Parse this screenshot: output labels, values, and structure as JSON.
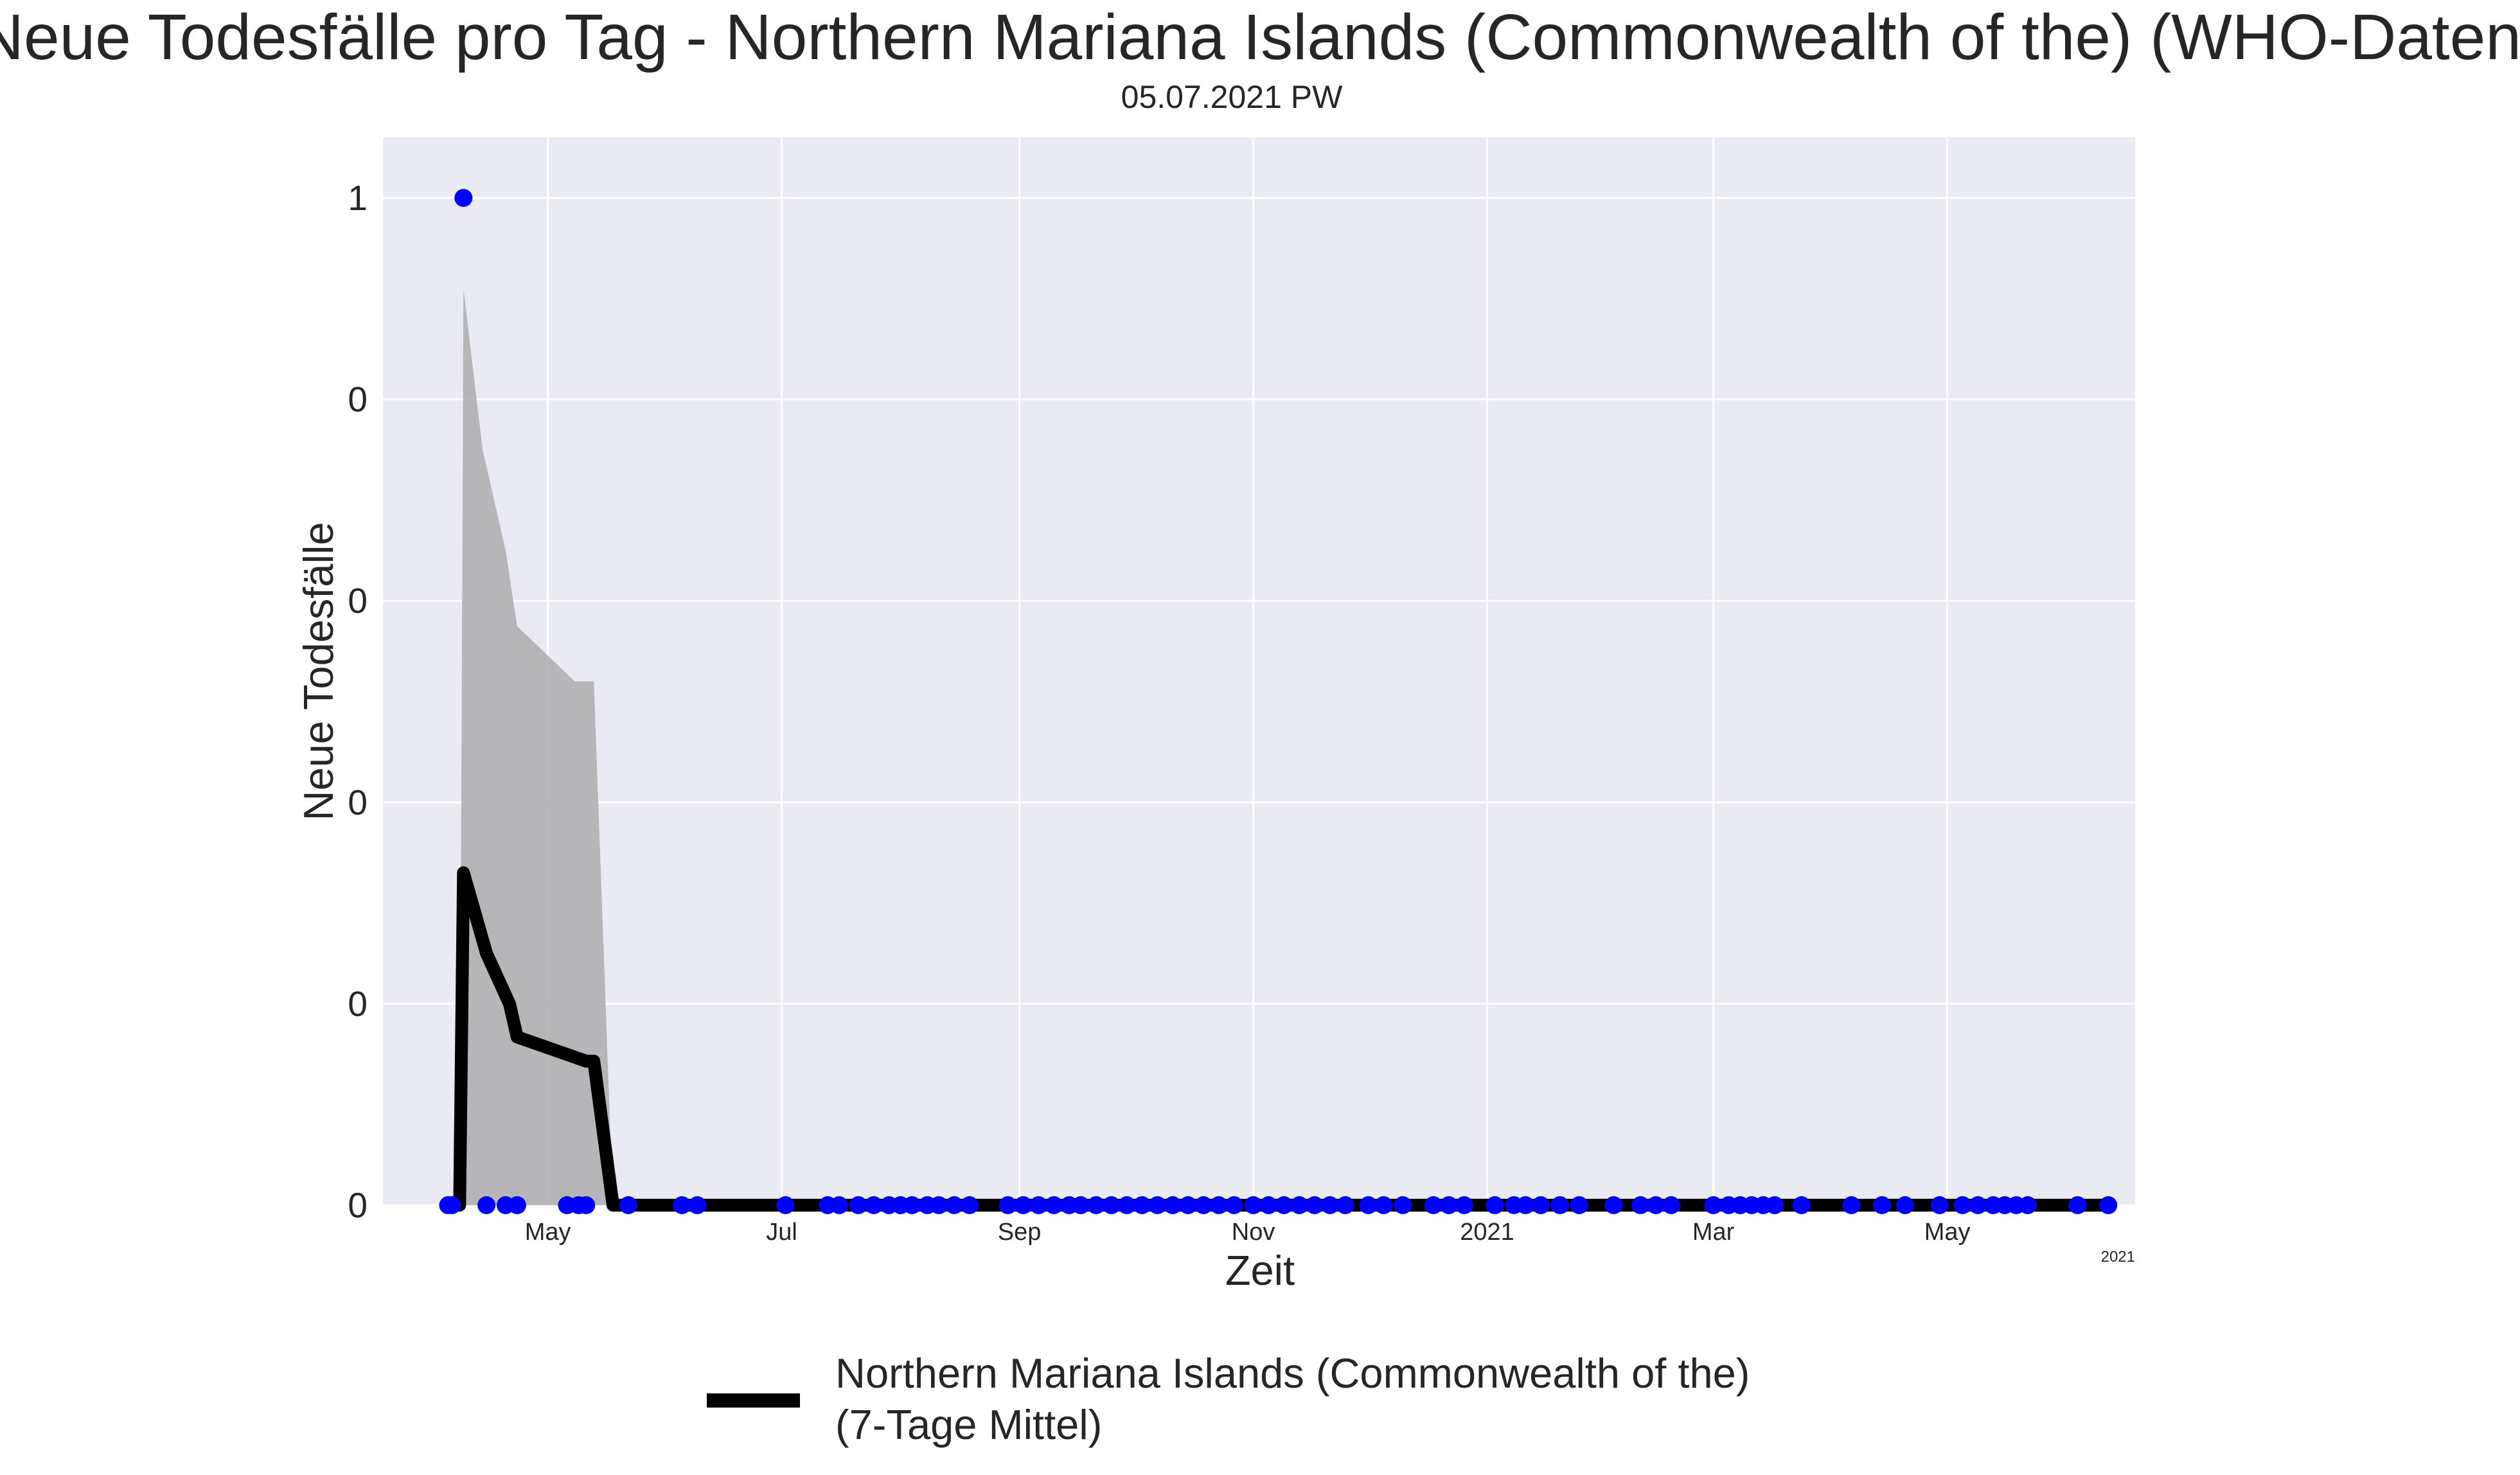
{
  "chart_data": {
    "type": "line",
    "title": "Neue Todesfälle pro Tag - Northern Mariana Islands (Commonwealth of the) (WHO-Daten)",
    "subtitle": "05.07.2021 PW",
    "xlabel": "Zeit",
    "ylabel": "Neue Todesfälle",
    "x_offset_label": "2021",
    "xlim": [
      "2020-03-19",
      "2021-06-19"
    ],
    "ylim": [
      0,
      1.06
    ],
    "grid": true,
    "x_ticks": [
      {
        "date": "2020-05-01",
        "label": "May"
      },
      {
        "date": "2020-07-01",
        "label": "Jul"
      },
      {
        "date": "2020-09-01",
        "label": "Sep"
      },
      {
        "date": "2020-11-01",
        "label": "Nov"
      },
      {
        "date": "2021-01-01",
        "label": "2021"
      },
      {
        "date": "2021-03-01",
        "label": "Mar"
      },
      {
        "date": "2021-05-01",
        "label": "May"
      }
    ],
    "y_ticks": [
      {
        "value": 0,
        "label": "0"
      },
      {
        "value": 0.2,
        "label": "0"
      },
      {
        "value": 0.4,
        "label": "0"
      },
      {
        "value": 0.6,
        "label": "0"
      },
      {
        "value": 0.8,
        "label": "0"
      },
      {
        "value": 1.0,
        "label": "1"
      }
    ],
    "legend": {
      "placement": "bottom-center",
      "label_lines": [
        "Northern Mariana Islands (Commonwealth of the)",
        "(7-Tage Mittel)"
      ]
    },
    "series": [
      {
        "name": "Northern Mariana Islands (Commonwealth of the)\n(7-Tage Mittel)",
        "kind": "line",
        "color": "#000000",
        "points": [
          [
            "2020-04-06",
            0
          ],
          [
            "2020-04-08",
            0
          ],
          [
            "2020-04-09",
            0.33
          ],
          [
            "2020-04-15",
            0.25
          ],
          [
            "2020-04-21",
            0.2
          ],
          [
            "2020-04-23",
            0.167
          ],
          [
            "2020-05-11",
            0.143
          ],
          [
            "2020-05-13",
            0.143
          ],
          [
            "2020-05-18",
            0
          ],
          [
            "2021-06-12",
            0
          ]
        ]
      },
      {
        "name": "band",
        "kind": "area",
        "color": "#b0b0b3",
        "upper": [
          [
            "2020-04-08",
            0
          ],
          [
            "2020-04-09",
            0.91
          ],
          [
            "2020-04-14",
            0.75
          ],
          [
            "2020-04-20",
            0.65
          ],
          [
            "2020-04-23",
            0.575
          ],
          [
            "2020-05-08",
            0.52
          ],
          [
            "2020-05-13",
            0.52
          ],
          [
            "2020-05-18",
            0
          ]
        ]
      },
      {
        "name": "daily",
        "kind": "scatter",
        "color": "#0000ff",
        "points": [
          [
            "2020-04-05",
            0
          ],
          [
            "2020-04-06",
            0
          ],
          [
            "2020-04-09",
            1
          ],
          [
            "2020-04-15",
            0
          ],
          [
            "2020-04-20",
            0
          ],
          [
            "2020-04-23",
            0
          ],
          [
            "2020-05-06",
            0
          ],
          [
            "2020-05-09",
            0
          ],
          [
            "2020-05-11",
            0
          ],
          [
            "2020-05-22",
            0
          ],
          [
            "2020-06-05",
            0
          ],
          [
            "2020-06-09",
            0
          ],
          [
            "2020-07-02",
            0
          ],
          [
            "2020-07-13",
            0
          ],
          [
            "2020-07-16",
            0
          ],
          [
            "2020-07-21",
            0
          ],
          [
            "2020-07-25",
            0
          ],
          [
            "2020-07-29",
            0
          ],
          [
            "2020-08-01",
            0
          ],
          [
            "2020-08-04",
            0
          ],
          [
            "2020-08-08",
            0
          ],
          [
            "2020-08-11",
            0
          ],
          [
            "2020-08-15",
            0
          ],
          [
            "2020-08-19",
            0
          ],
          [
            "2020-08-29",
            0
          ],
          [
            "2020-09-02",
            0
          ],
          [
            "2020-09-06",
            0
          ],
          [
            "2020-09-10",
            0
          ],
          [
            "2020-09-14",
            0
          ],
          [
            "2020-09-17",
            0
          ],
          [
            "2020-09-21",
            0
          ],
          [
            "2020-09-25",
            0
          ],
          [
            "2020-09-29",
            0
          ],
          [
            "2020-10-03",
            0
          ],
          [
            "2020-10-07",
            0
          ],
          [
            "2020-10-11",
            0
          ],
          [
            "2020-10-15",
            0
          ],
          [
            "2020-10-19",
            0
          ],
          [
            "2020-10-23",
            0
          ],
          [
            "2020-10-27",
            0
          ],
          [
            "2020-11-01",
            0
          ],
          [
            "2020-11-05",
            0
          ],
          [
            "2020-11-09",
            0
          ],
          [
            "2020-11-13",
            0
          ],
          [
            "2020-11-17",
            0
          ],
          [
            "2020-11-21",
            0
          ],
          [
            "2020-11-25",
            0
          ],
          [
            "2020-12-01",
            0
          ],
          [
            "2020-12-05",
            0
          ],
          [
            "2020-12-10",
            0
          ],
          [
            "2020-12-18",
            0
          ],
          [
            "2020-12-22",
            0
          ],
          [
            "2020-12-26",
            0
          ],
          [
            "2021-01-03",
            0
          ],
          [
            "2021-01-08",
            0
          ],
          [
            "2021-01-11",
            0
          ],
          [
            "2021-01-15",
            0
          ],
          [
            "2021-01-20",
            0
          ],
          [
            "2021-01-25",
            0
          ],
          [
            "2021-02-03",
            0
          ],
          [
            "2021-02-10",
            0
          ],
          [
            "2021-02-14",
            0
          ],
          [
            "2021-02-18",
            0
          ],
          [
            "2021-03-01",
            0
          ],
          [
            "2021-03-05",
            0
          ],
          [
            "2021-03-08",
            0
          ],
          [
            "2021-03-11",
            0
          ],
          [
            "2021-03-14",
            0
          ],
          [
            "2021-03-17",
            0
          ],
          [
            "2021-03-24",
            0
          ],
          [
            "2021-04-06",
            0
          ],
          [
            "2021-04-14",
            0
          ],
          [
            "2021-04-20",
            0
          ],
          [
            "2021-04-29",
            0
          ],
          [
            "2021-05-05",
            0
          ],
          [
            "2021-05-09",
            0
          ],
          [
            "2021-05-13",
            0
          ],
          [
            "2021-05-16",
            0
          ],
          [
            "2021-05-19",
            0
          ],
          [
            "2021-05-22",
            0
          ],
          [
            "2021-06-04",
            0
          ],
          [
            "2021-06-12",
            0
          ]
        ]
      }
    ]
  }
}
